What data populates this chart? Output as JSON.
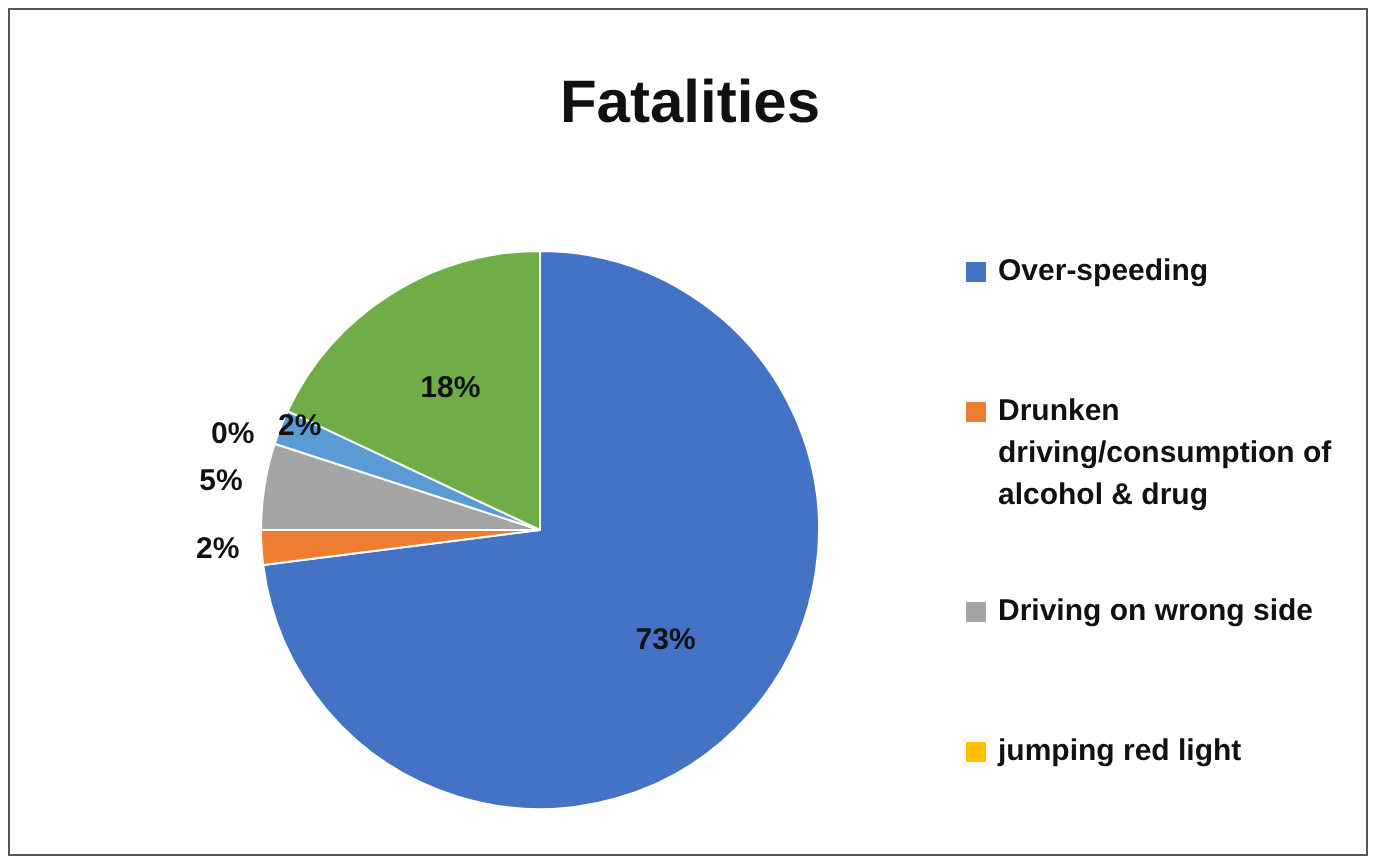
{
  "chart_data": {
    "type": "pie",
    "title": "Fatalities",
    "categories": [
      "Over-speeding",
      "Drunken driving/consumption of alcohol & drug",
      "Driving on wrong side",
      "jumping red light",
      null,
      null
    ],
    "values": [
      73,
      2,
      5,
      0,
      2,
      18
    ],
    "colors": [
      "#4472c4",
      "#ed7d31",
      "#a5a5a5",
      "#ffc000",
      "#5b9bd5",
      "#70ad47"
    ],
    "value_labels": [
      "73%",
      "2%",
      "5%",
      "0%",
      "2%",
      "18%"
    ],
    "legend": "right"
  }
}
